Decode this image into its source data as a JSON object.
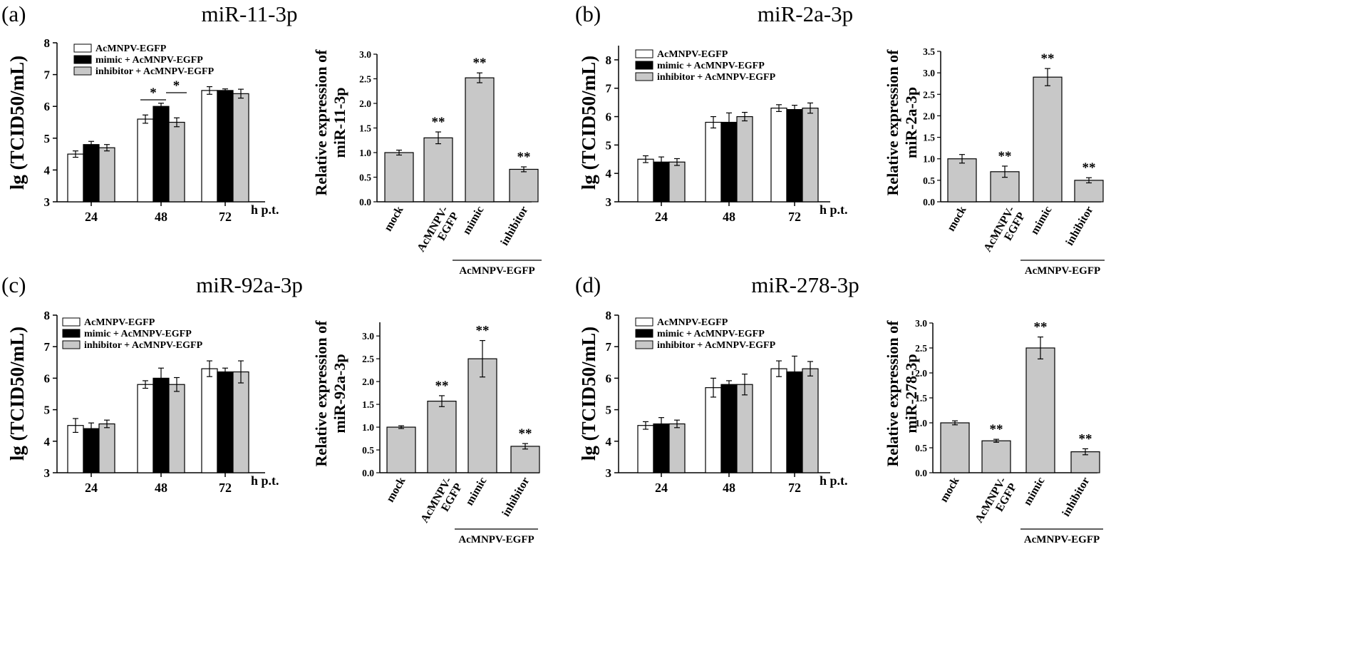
{
  "legend": {
    "labels": [
      "AcMNPV-EGFP",
      "mimic + AcMNPV-EGFP",
      "inhibitor + AcMNPV-EGFP"
    ],
    "colors": [
      "#ffffff",
      "#000000",
      "#c8c8c8"
    ]
  },
  "chart_data": [
    {
      "type": "bar",
      "panel": "(a)",
      "title": "miR-11-3p",
      "ylabel": "lg (TCID50/mL)",
      "xlabel": "h p.t.",
      "categories": [
        "24",
        "48",
        "72"
      ],
      "ylim": [
        3,
        8
      ],
      "yticks": [
        3,
        4,
        5,
        6,
        7,
        8
      ],
      "series": [
        {
          "name": "AcMNPV-EGFP",
          "values": [
            4.5,
            5.6,
            6.5
          ],
          "errors": [
            0.1,
            0.13,
            0.12
          ]
        },
        {
          "name": "mimic + AcMNPV-EGFP",
          "values": [
            4.8,
            6.0,
            6.5
          ],
          "errors": [
            0.1,
            0.1,
            0.05
          ]
        },
        {
          "name": "inhibitor + AcMNPV-EGFP",
          "values": [
            4.7,
            5.5,
            6.4
          ],
          "errors": [
            0.1,
            0.14,
            0.14
          ]
        }
      ],
      "annotations": [
        "*",
        "*"
      ]
    },
    {
      "type": "bar",
      "panel": "(a)",
      "ylabel": "Relative expression of miR-11-3p",
      "categories": [
        "mock",
        "AcMNPV-EGFP",
        "mimic",
        "inhibitor"
      ],
      "group_label": "AcMNPV-EGFP",
      "ylim": [
        0,
        3.0
      ],
      "yticks": [
        "0.0",
        "0.5",
        "1.0",
        "1.5",
        "2.0",
        "2.5",
        "3.0"
      ],
      "values": [
        1.0,
        1.3,
        2.52,
        0.66
      ],
      "errors": [
        0.05,
        0.12,
        0.1,
        0.05
      ],
      "significance": [
        "",
        "**",
        "**",
        "**"
      ]
    },
    {
      "type": "bar",
      "panel": "(b)",
      "title": "miR-2a-3p",
      "ylabel": "lg (TCID50/mL)",
      "xlabel": "h p.t.",
      "categories": [
        "24",
        "48",
        "72"
      ],
      "ylim": [
        3,
        8.5
      ],
      "yticks": [
        3,
        4,
        5,
        6,
        7,
        8
      ],
      "series": [
        {
          "name": "AcMNPV-EGFP",
          "values": [
            4.5,
            5.8,
            6.3
          ],
          "errors": [
            0.12,
            0.2,
            0.12
          ]
        },
        {
          "name": "mimic + AcMNPV-EGFP",
          "values": [
            4.4,
            5.8,
            6.25
          ],
          "errors": [
            0.18,
            0.33,
            0.15
          ]
        },
        {
          "name": "inhibitor + AcMNPV-EGFP",
          "values": [
            4.4,
            6.0,
            6.3
          ],
          "errors": [
            0.12,
            0.15,
            0.18
          ]
        }
      ]
    },
    {
      "type": "bar",
      "panel": "(b)",
      "ylabel": "Relative expression of miR-2a-3p",
      "categories": [
        "mock",
        "AcMNPV-EGFP",
        "mimic",
        "inhibitor"
      ],
      "group_label": "AcMNPV-EGFP",
      "ylim": [
        0,
        3.5
      ],
      "yticks": [
        "0.0",
        "0.5",
        "1.0",
        "1.5",
        "2.0",
        "2.5",
        "3.0",
        "3.5"
      ],
      "values": [
        1.0,
        0.7,
        2.9,
        0.5
      ],
      "errors": [
        0.1,
        0.13,
        0.2,
        0.06
      ],
      "significance": [
        "",
        "**",
        "**",
        "**"
      ]
    },
    {
      "type": "bar",
      "panel": "(c)",
      "title": "miR-92a-3p",
      "ylabel": "lg (TCID50/mL)",
      "xlabel": "h p.t.",
      "categories": [
        "24",
        "48",
        "72"
      ],
      "ylim": [
        3,
        8
      ],
      "yticks": [
        3,
        4,
        5,
        6,
        7,
        8
      ],
      "series": [
        {
          "name": "AcMNPV-EGFP",
          "values": [
            4.5,
            5.8,
            6.3
          ],
          "errors": [
            0.22,
            0.12,
            0.25
          ]
        },
        {
          "name": "mimic + AcMNPV-EGFP",
          "values": [
            4.4,
            6.0,
            6.2
          ],
          "errors": [
            0.18,
            0.32,
            0.12
          ]
        },
        {
          "name": "inhibitor + AcMNPV-EGFP",
          "values": [
            4.55,
            5.8,
            6.2
          ],
          "errors": [
            0.12,
            0.22,
            0.35
          ]
        }
      ]
    },
    {
      "type": "bar",
      "panel": "(c)",
      "ylabel": "Relative expression of miR-92a-3p",
      "categories": [
        "mock",
        "AcMNPV-EGFP",
        "mimic",
        "inhibitor"
      ],
      "group_label": "AcMNPV-EGFP",
      "ylim": [
        0,
        3.3
      ],
      "yticks": [
        "0.0",
        "0.5",
        "1.0",
        "1.5",
        "2.0",
        "2.5",
        "3.0"
      ],
      "values": [
        1.0,
        1.57,
        2.5,
        0.58
      ],
      "errors": [
        0.03,
        0.12,
        0.4,
        0.06
      ],
      "significance": [
        "",
        "**",
        "**",
        "**"
      ]
    },
    {
      "type": "bar",
      "panel": "(d)",
      "title": "miR-278-3p",
      "ylabel": "lg (TCID50/mL)",
      "xlabel": "h p.t.",
      "categories": [
        "24",
        "48",
        "72"
      ],
      "ylim": [
        3,
        8
      ],
      "yticks": [
        3,
        4,
        5,
        6,
        7,
        8
      ],
      "series": [
        {
          "name": "AcMNPV-EGFP",
          "values": [
            4.5,
            5.7,
            6.3
          ],
          "errors": [
            0.12,
            0.3,
            0.25
          ]
        },
        {
          "name": "mimic + AcMNPV-EGFP",
          "values": [
            4.55,
            5.8,
            6.2
          ],
          "errors": [
            0.2,
            0.12,
            0.5
          ]
        },
        {
          "name": "inhibitor + AcMNPV-EGFP",
          "values": [
            4.55,
            5.8,
            6.3
          ],
          "errors": [
            0.12,
            0.33,
            0.23
          ]
        }
      ]
    },
    {
      "type": "bar",
      "panel": "(d)",
      "ylabel": "Relative expression of miR-278-3p",
      "categories": [
        "mock",
        "AcMNPV-EGFP",
        "mimic",
        "inhibitor"
      ],
      "group_label": "AcMNPV-EGFP",
      "ylim": [
        0,
        3.0
      ],
      "yticks": [
        "0.0",
        "0.5",
        "1.0",
        "1.5",
        "2.0",
        "2.5",
        "3.0"
      ],
      "values": [
        1.0,
        0.64,
        2.5,
        0.42
      ],
      "errors": [
        0.04,
        0.03,
        0.22,
        0.06
      ],
      "significance": [
        "",
        "**",
        "**",
        "**"
      ]
    }
  ]
}
